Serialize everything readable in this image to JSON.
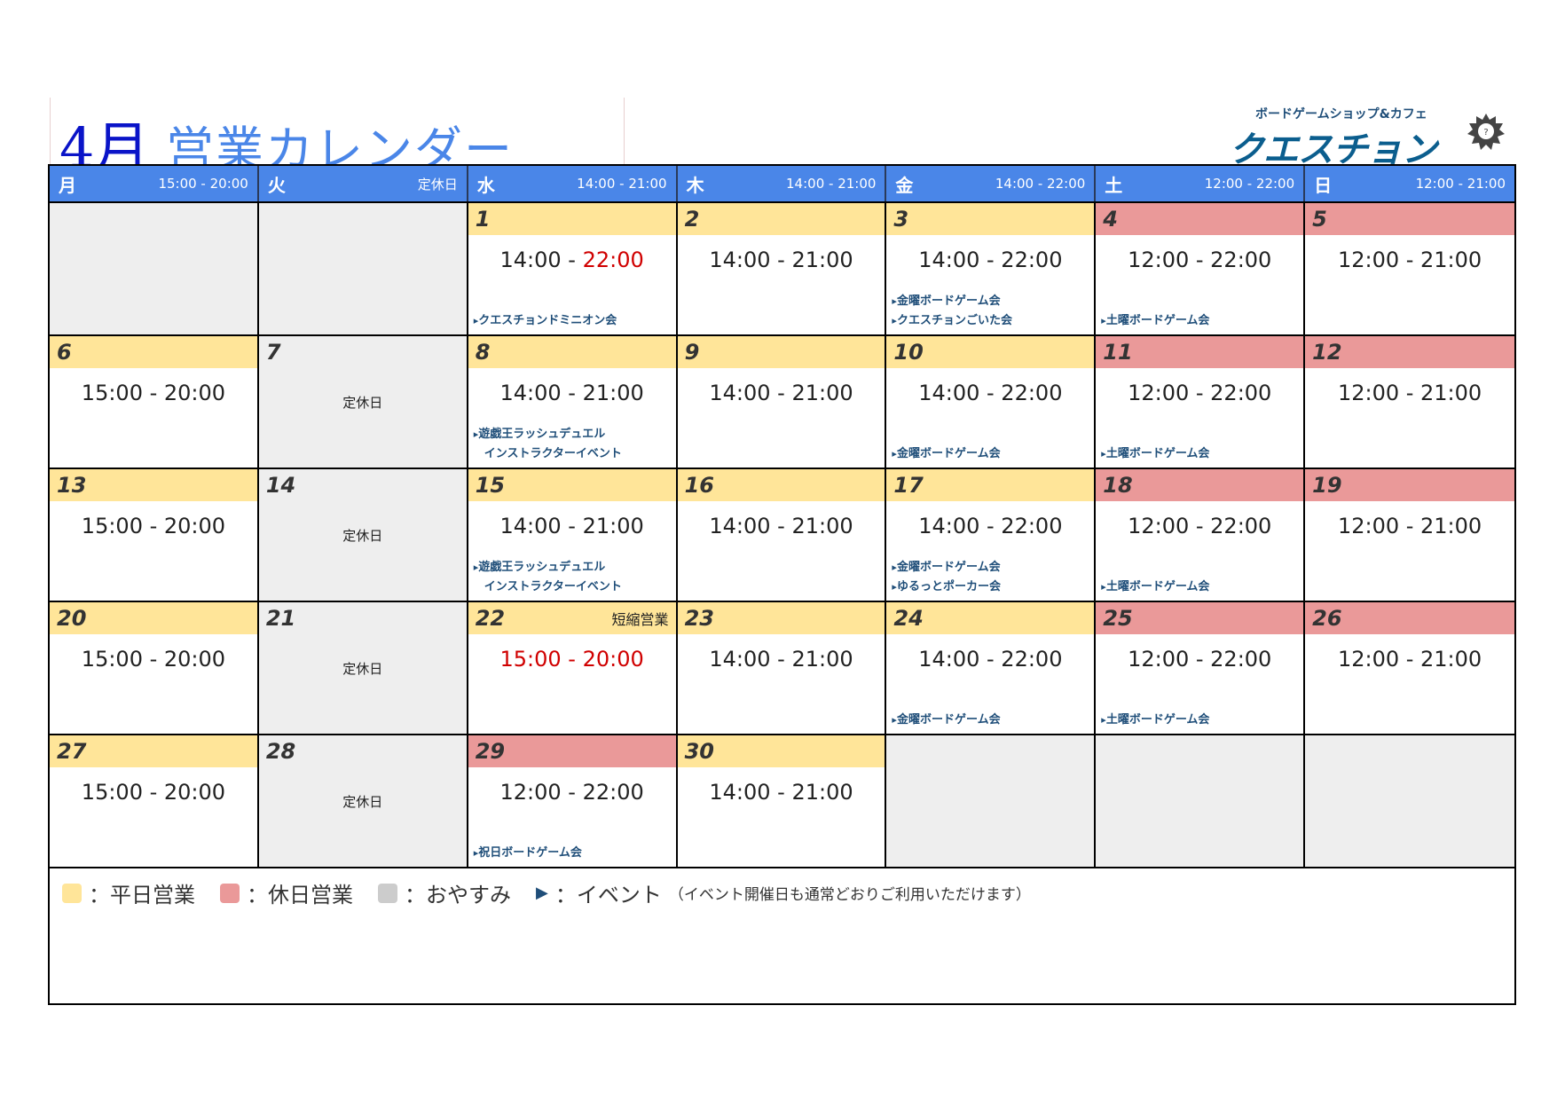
{
  "title": {
    "month": "4月",
    "name": "営業カレンダー"
  },
  "logo": {
    "subtitle": "ボードゲームショップ&カフェ",
    "name": "クエスチョン"
  },
  "colors": {
    "header": "#4a86e8",
    "weekday": "#ffe599",
    "holiday": "#ea9999",
    "off": "#cccccc",
    "event": "#1f4e79",
    "highlight": "#d00000"
  },
  "header": [
    {
      "day": "月",
      "hours": "15:00 - 20:00"
    },
    {
      "day": "火",
      "hours": "定休日"
    },
    {
      "day": "水",
      "hours": "14:00 - 21:00"
    },
    {
      "day": "木",
      "hours": "14:00 - 21:00"
    },
    {
      "day": "金",
      "hours": "14:00 - 22:00"
    },
    {
      "day": "土",
      "hours": "12:00 - 22:00"
    },
    {
      "day": "日",
      "hours": "12:00 - 21:00"
    }
  ],
  "weeks": [
    [
      {
        "type": "empty"
      },
      {
        "type": "empty"
      },
      {
        "type": "weekday",
        "day": "1",
        "hours": [
          {
            "t": "14:00 - ",
            "red": false
          },
          {
            "t": "22:00",
            "red": true
          }
        ],
        "events": [
          "クエスチョンドミニオン会"
        ]
      },
      {
        "type": "weekday",
        "day": "2",
        "hours": [
          {
            "t": "14:00 - 21:00",
            "red": false
          }
        ],
        "events": []
      },
      {
        "type": "weekday",
        "day": "3",
        "hours": [
          {
            "t": "14:00 - 22:00",
            "red": false
          }
        ],
        "events": [
          "金曜ボードゲーム会",
          "クエスチョンごいた会"
        ]
      },
      {
        "type": "holiday",
        "day": "4",
        "hours": [
          {
            "t": "12:00 - 22:00",
            "red": false
          }
        ],
        "events": [
          "土曜ボードゲーム会"
        ]
      },
      {
        "type": "holiday",
        "day": "5",
        "hours": [
          {
            "t": "12:00 - 21:00",
            "red": false
          }
        ],
        "events": []
      }
    ],
    [
      {
        "type": "weekday",
        "day": "6",
        "hours": [
          {
            "t": "15:00 - 20:00",
            "red": false
          }
        ],
        "events": []
      },
      {
        "type": "off",
        "day": "7",
        "note": "定休日"
      },
      {
        "type": "weekday",
        "day": "8",
        "hours": [
          {
            "t": "14:00 - 21:00",
            "red": false
          }
        ],
        "events": [
          "遊戯王ラッシュデュエル",
          "+インストラクターイベント"
        ]
      },
      {
        "type": "weekday",
        "day": "9",
        "hours": [
          {
            "t": "14:00 - 21:00",
            "red": false
          }
        ],
        "events": []
      },
      {
        "type": "weekday",
        "day": "10",
        "hours": [
          {
            "t": "14:00 - 22:00",
            "red": false
          }
        ],
        "events": [
          "金曜ボードゲーム会"
        ]
      },
      {
        "type": "holiday",
        "day": "11",
        "hours": [
          {
            "t": "12:00 - 22:00",
            "red": false
          }
        ],
        "events": [
          "土曜ボードゲーム会"
        ]
      },
      {
        "type": "holiday",
        "day": "12",
        "hours": [
          {
            "t": "12:00 - 21:00",
            "red": false
          }
        ],
        "events": []
      }
    ],
    [
      {
        "type": "weekday",
        "day": "13",
        "hours": [
          {
            "t": "15:00 - 20:00",
            "red": false
          }
        ],
        "events": []
      },
      {
        "type": "off",
        "day": "14",
        "note": "定休日"
      },
      {
        "type": "weekday",
        "day": "15",
        "hours": [
          {
            "t": "14:00 - 21:00",
            "red": false
          }
        ],
        "events": [
          "遊戯王ラッシュデュエル",
          "+インストラクターイベント"
        ]
      },
      {
        "type": "weekday",
        "day": "16",
        "hours": [
          {
            "t": "14:00 - 21:00",
            "red": false
          }
        ],
        "events": []
      },
      {
        "type": "weekday",
        "day": "17",
        "hours": [
          {
            "t": "14:00 - 22:00",
            "red": false
          }
        ],
        "events": [
          "金曜ボードゲーム会",
          "ゆるっとポーカー会"
        ]
      },
      {
        "type": "holiday",
        "day": "18",
        "hours": [
          {
            "t": "12:00 - 22:00",
            "red": false
          }
        ],
        "events": [
          "土曜ボードゲーム会"
        ]
      },
      {
        "type": "holiday",
        "day": "19",
        "hours": [
          {
            "t": "12:00 - 21:00",
            "red": false
          }
        ],
        "events": []
      }
    ],
    [
      {
        "type": "weekday",
        "day": "20",
        "hours": [
          {
            "t": "15:00 - 20:00",
            "red": false
          }
        ],
        "events": []
      },
      {
        "type": "off",
        "day": "21",
        "note": "定休日"
      },
      {
        "type": "weekday",
        "day": "22",
        "short": "短縮営業",
        "hours": [
          {
            "t": "15:00 - 20:00",
            "red": true
          }
        ],
        "events": []
      },
      {
        "type": "weekday",
        "day": "23",
        "hours": [
          {
            "t": "14:00 - 21:00",
            "red": false
          }
        ],
        "events": []
      },
      {
        "type": "weekday",
        "day": "24",
        "hours": [
          {
            "t": "14:00 - 22:00",
            "red": false
          }
        ],
        "events": [
          "金曜ボードゲーム会"
        ]
      },
      {
        "type": "holiday",
        "day": "25",
        "hours": [
          {
            "t": "12:00 - 22:00",
            "red": false
          }
        ],
        "events": [
          "土曜ボードゲーム会"
        ]
      },
      {
        "type": "holiday",
        "day": "26",
        "hours": [
          {
            "t": "12:00 - 21:00",
            "red": false
          }
        ],
        "events": []
      }
    ],
    [
      {
        "type": "weekday",
        "day": "27",
        "hours": [
          {
            "t": "15:00 - 20:00",
            "red": false
          }
        ],
        "events": []
      },
      {
        "type": "off",
        "day": "28",
        "note": "定休日"
      },
      {
        "type": "holiday",
        "day": "29",
        "hours": [
          {
            "t": "12:00 - 22:00",
            "red": false
          }
        ],
        "events": [
          "祝日ボードゲーム会"
        ]
      },
      {
        "type": "weekday",
        "day": "30",
        "hours": [
          {
            "t": "14:00 - 21:00",
            "red": false
          }
        ],
        "events": []
      },
      {
        "type": "empty"
      },
      {
        "type": "empty"
      },
      {
        "type": "empty"
      }
    ]
  ],
  "legend": {
    "weekday": "：平日営業",
    "holiday": "：休日営業",
    "off": "：おやすみ",
    "event": "：イベント",
    "event_note": "（イベント開催日も通常どおりご利用いただけます）"
  }
}
